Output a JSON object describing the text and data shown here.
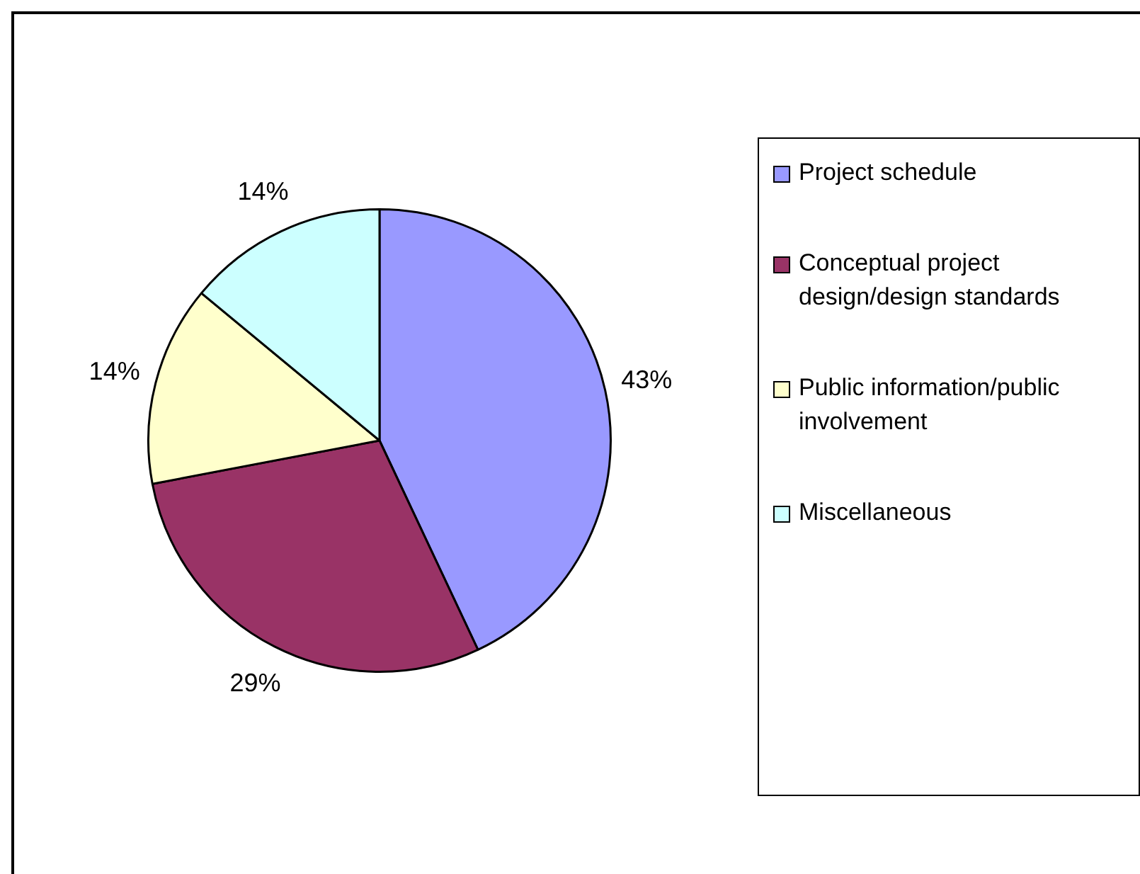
{
  "chart_data": {
    "type": "pie",
    "categories": [
      "Project schedule",
      "Conceptual project design/design standards",
      "Public information/public involvement",
      "Miscellaneous"
    ],
    "values": [
      43,
      29,
      14,
      14
    ],
    "colors": [
      "#9999ff",
      "#993366",
      "#ffffcc",
      "#ccffff"
    ],
    "value_labels": [
      "43%",
      "29%",
      "14%",
      "14%"
    ],
    "legend": "right"
  }
}
